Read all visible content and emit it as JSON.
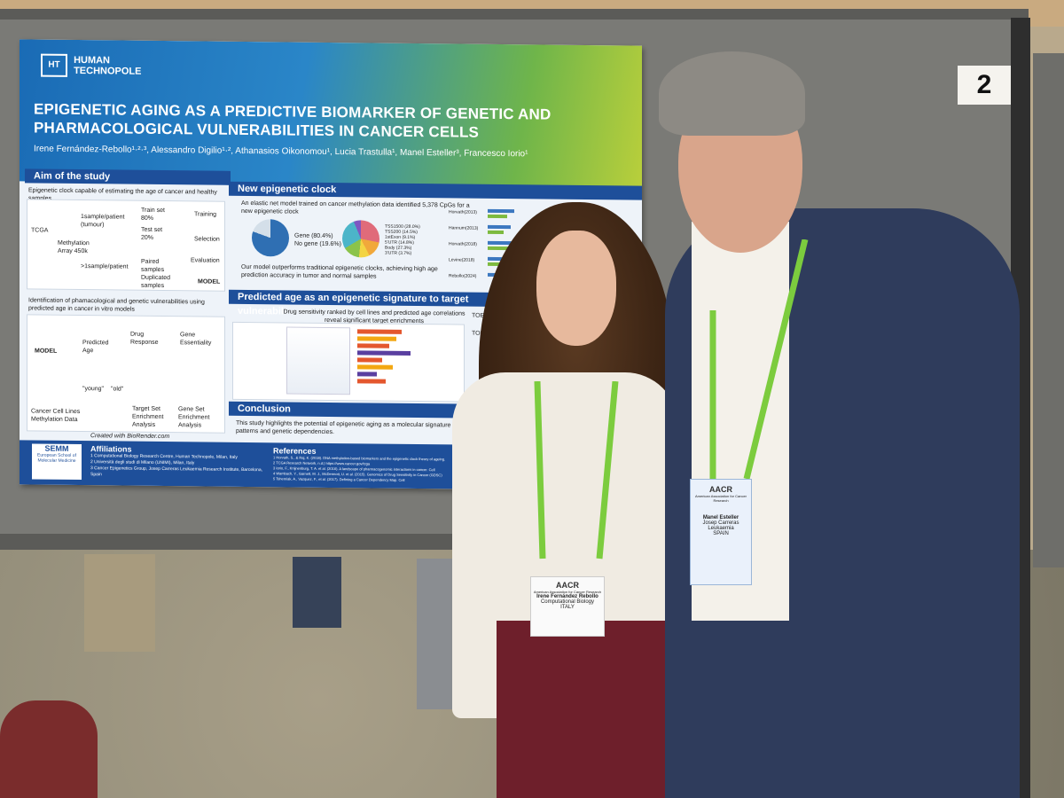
{
  "booth": {
    "number": "2"
  },
  "poster": {
    "logo": "HUMAN TECHNOPOLE",
    "title": "EPIGENETIC AGING AS A PREDICTIVE BIOMARKER OF GENETIC AND PHARMACOLOGICAL VULNERABILITIES IN CANCER CELLS",
    "authors": "Irene Fernández-Rebollo¹·²·³, Alessandro Digilio¹·², Athanasios Oikonomou¹, Lucia Trastulla¹, Manel Esteller³, Francesco Iorio¹",
    "aim": {
      "header": "Aim of the study",
      "text": "Epigenetic clock capable of estimating the age of cancer and healthy samples",
      "labels": [
        "TCGA",
        "1sample/patient (tumour)",
        "Methylation Array 450k",
        ">1sample/patient",
        "Train set 80%",
        "Test set 20%",
        "Training",
        "Selection",
        "Evaluation",
        "Paired samples",
        "Duplicated samples",
        "MODEL"
      ]
    },
    "identification": {
      "text": "Identification of phamacological and genetic vulnerabilities using predicted age in cancer in vitro models",
      "labels": [
        "MODEL",
        "Predicted Age",
        "Drug Response",
        "Gene Essentiality",
        "\"young\"",
        "\"old\"",
        "Target Set Enrichment Analysis",
        "Gene Set Enrichment Analysis",
        "Cancer Cell Lines Methylation Data"
      ]
    },
    "clock": {
      "header": "New epigenetic clock",
      "text": "An elastic net model trained on cancer methylation data identified 5,378 CpGs for a new epigenetic clock",
      "text2": "Our model outperforms traditional epigenetic clocks, achieving high age prediction accuracy in tumor and normal samples",
      "pie1_legend": [
        "Gene (80.4%)",
        "No gene (19.6%)"
      ],
      "pie2_legend": [
        "TSS1500 (28.0%)",
        "TSS200 (14.5%)",
        "1stExon (9.1%)",
        "5'UTR (14.8%)",
        "Body (27.3%)",
        "3'UTR (3.7%)"
      ],
      "clocks": [
        "Horvath(2013)",
        "Hannum(2013)",
        "Horvath(2018)",
        "Levine(2018)",
        "Rebollo(2024)"
      ]
    },
    "signature": {
      "header": "Predicted age as an epigenetic signature to target vulnerabil",
      "text": "Drug sensitivity ranked by cell lines and predicted age correlations reveal significant target enrichments",
      "side": [
        "TOE1",
        "TOE1"
      ]
    },
    "conclusion": {
      "header": "Conclusion",
      "text": "This study highlights the potential of epigenetic aging as a molecular signature in the context of patterns and genetic dependencies."
    },
    "credit": "Created with BioRender.com",
    "affiliations": {
      "header": "Affiliations",
      "items": [
        "1 Computational Biology Research Centre, Human Technopole, Milan, Italy",
        "2 Università degli studi di Milano (UNIMI), Milan, Italy",
        "3 Cancer Epigenetics Group, Josep Carreras Leukaemia Research Institute, Barcelona, Spain"
      ]
    },
    "references": {
      "header": "References",
      "items": [
        "1 Horvath, S., & Raj, K. (2018). DNA methylation-based biomarkers and the epigenetic clock theory of ageing.",
        "2 TCGA Research Network, n.d.) https://www.cancer.gov/tcga",
        "3 Iorio, F., Knijnenburg, T. A. et al. (2016). A landscape of pharmacogenomic interactions in cancer. Cell",
        "4 Wambach, Y., Garnett, M. J., McDermott, U. et al. (2015). Genomics of Drug Sensitivity in Cancer (GDSC)",
        "5 Tsherniak, A., Vazquez, F., et al. (2017). Defining a Cancer Dependency Map. Cell"
      ]
    },
    "semm": {
      "logo": "SEMM",
      "caption": "European School of Molecular Medicine"
    }
  },
  "badge_left": {
    "logo": "AACR",
    "org": "American Association for Cancer Research",
    "name": "Irene Fernández Rebollo",
    "role": "Computational Biology",
    "country": "ITALY"
  },
  "badge_right": {
    "logo": "AACR",
    "org": "American Association for Cancer Research",
    "name": "Manel Esteller",
    "role": "Josep Carreras Leukaemia",
    "country": "SPAIN"
  },
  "colors": {
    "poster_blue": "#1e4f9a",
    "poster_green": "#7dba3f",
    "lanyard_green": "#7ccc3e",
    "jacket": "#2f3c5c",
    "pants": "#6e1f2b"
  }
}
